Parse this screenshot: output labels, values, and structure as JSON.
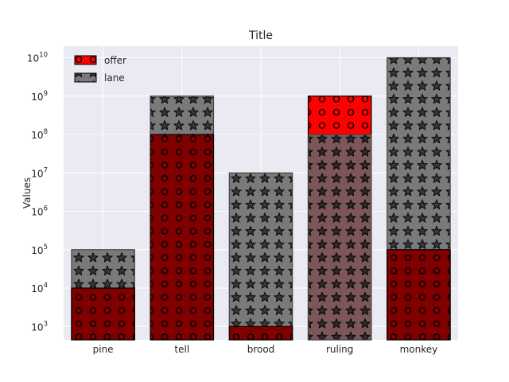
{
  "chart_data": {
    "type": "bar",
    "title": "Title",
    "xlabel": "",
    "ylabel": "Values",
    "yscale": "log",
    "ylim": [
      450,
      20000000000
    ],
    "yticks": [
      1000,
      10000,
      100000,
      1000000,
      10000000,
      100000000,
      1000000000,
      10000000000
    ],
    "ytick_labels": [
      {
        "base": "10",
        "exp": "3"
      },
      {
        "base": "10",
        "exp": "4"
      },
      {
        "base": "10",
        "exp": "5"
      },
      {
        "base": "10",
        "exp": "6"
      },
      {
        "base": "10",
        "exp": "7"
      },
      {
        "base": "10",
        "exp": "8"
      },
      {
        "base": "10",
        "exp": "9"
      },
      {
        "base": "10",
        "exp": "10"
      }
    ],
    "categories": [
      "pine",
      "tell",
      "brood",
      "ruling",
      "monkey"
    ],
    "series": [
      {
        "name": "offer",
        "values": [
          10000,
          100000000,
          1000,
          1000000000,
          100000
        ],
        "color": "#ff0000",
        "hatch": "circles"
      },
      {
        "name": "lane",
        "values": [
          100000,
          1000000000,
          10000000,
          100000000,
          10000000000
        ],
        "color": "#666666",
        "hatch": "stars"
      }
    ],
    "grid": true,
    "legend_position": "top-left",
    "background": "#eaeaf2"
  }
}
